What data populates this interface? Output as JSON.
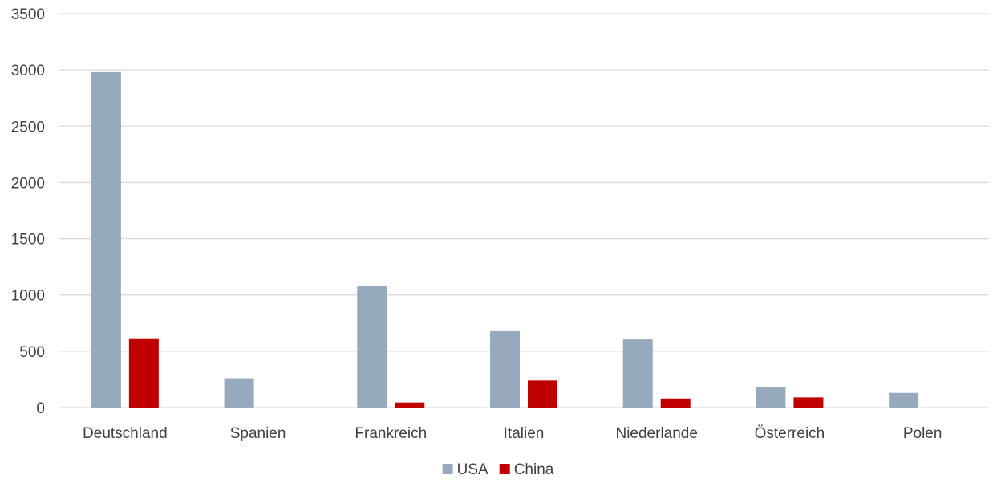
{
  "chart_data": {
    "type": "bar",
    "title": "",
    "xlabel": "",
    "ylabel": "",
    "ylim": [
      0,
      3500
    ],
    "yticks": [
      0,
      500,
      1000,
      1500,
      2000,
      2500,
      3000,
      3500
    ],
    "grid": true,
    "legend_position": "bottom",
    "categories": [
      "Deutschland",
      "Spanien",
      "Frankreich",
      "Italien",
      "Niederlande",
      "Österreich",
      "Polen"
    ],
    "series": [
      {
        "name": "USA",
        "color": "#97a9bc",
        "values": [
          2980,
          260,
          1080,
          685,
          605,
          185,
          130
        ]
      },
      {
        "name": "China",
        "color": "#c00000",
        "values": [
          615,
          0,
          45,
          240,
          80,
          90,
          0
        ]
      }
    ]
  }
}
